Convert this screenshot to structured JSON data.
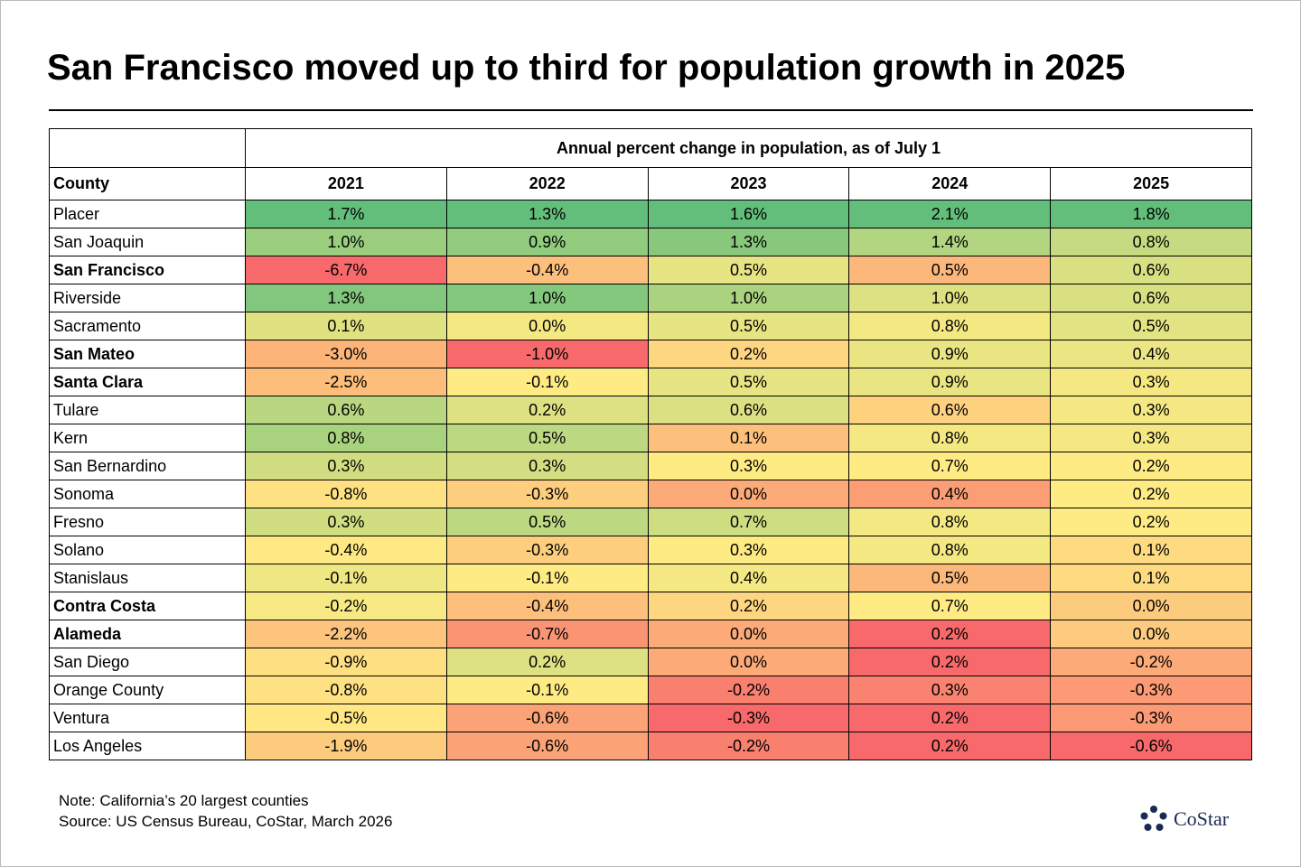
{
  "header": {
    "title": "San Francisco moved up to third for population growth in 2025"
  },
  "table": {
    "span_header": "Annual percent change in population, as of July 1",
    "columns": [
      "County",
      "2021",
      "2022",
      "2023",
      "2024",
      "2025"
    ],
    "rows": [
      {
        "county": "Placer",
        "bold": false,
        "values": [
          "1.7%",
          "1.3%",
          "1.6%",
          "2.1%",
          "1.8%"
        ]
      },
      {
        "county": "San Joaquin",
        "bold": false,
        "values": [
          "1.0%",
          "0.9%",
          "1.3%",
          "1.4%",
          "0.8%"
        ]
      },
      {
        "county": "San Francisco",
        "bold": true,
        "values": [
          "-6.7%",
          "-0.4%",
          "0.5%",
          "0.5%",
          "0.6%"
        ]
      },
      {
        "county": "Riverside",
        "bold": false,
        "values": [
          "1.3%",
          "1.0%",
          "1.0%",
          "1.0%",
          "0.6%"
        ]
      },
      {
        "county": "Sacramento",
        "bold": false,
        "values": [
          "0.1%",
          "0.0%",
          "0.5%",
          "0.8%",
          "0.5%"
        ]
      },
      {
        "county": "San Mateo",
        "bold": true,
        "values": [
          "-3.0%",
          "-1.0%",
          "0.2%",
          "0.9%",
          "0.4%"
        ]
      },
      {
        "county": "Santa Clara",
        "bold": true,
        "values": [
          "-2.5%",
          "-0.1%",
          "0.5%",
          "0.9%",
          "0.3%"
        ]
      },
      {
        "county": "Tulare",
        "bold": false,
        "values": [
          "0.6%",
          "0.2%",
          "0.6%",
          "0.6%",
          "0.3%"
        ]
      },
      {
        "county": "Kern",
        "bold": false,
        "values": [
          "0.8%",
          "0.5%",
          "0.1%",
          "0.8%",
          "0.3%"
        ]
      },
      {
        "county": "San Bernardino",
        "bold": false,
        "values": [
          "0.3%",
          "0.3%",
          "0.3%",
          "0.7%",
          "0.2%"
        ]
      },
      {
        "county": "Sonoma",
        "bold": false,
        "values": [
          "-0.8%",
          "-0.3%",
          "0.0%",
          "0.4%",
          "0.2%"
        ]
      },
      {
        "county": "Fresno",
        "bold": false,
        "values": [
          "0.3%",
          "0.5%",
          "0.7%",
          "0.8%",
          "0.2%"
        ]
      },
      {
        "county": "Solano",
        "bold": false,
        "values": [
          "-0.4%",
          "-0.3%",
          "0.3%",
          "0.8%",
          "0.1%"
        ]
      },
      {
        "county": "Stanislaus",
        "bold": false,
        "values": [
          "-0.1%",
          "-0.1%",
          "0.4%",
          "0.5%",
          "0.1%"
        ]
      },
      {
        "county": "Contra Costa",
        "bold": true,
        "values": [
          "-0.2%",
          "-0.4%",
          "0.2%",
          "0.7%",
          "0.0%"
        ]
      },
      {
        "county": "Alameda",
        "bold": true,
        "values": [
          "-2.2%",
          "-0.7%",
          "0.0%",
          "0.2%",
          "0.0%"
        ]
      },
      {
        "county": "San Diego",
        "bold": false,
        "values": [
          "-0.9%",
          "0.2%",
          "0.0%",
          "0.2%",
          "-0.2%"
        ]
      },
      {
        "county": "Orange County",
        "bold": false,
        "values": [
          "-0.8%",
          "-0.1%",
          "-0.2%",
          "0.3%",
          "-0.3%"
        ]
      },
      {
        "county": "Ventura",
        "bold": false,
        "values": [
          "-0.5%",
          "-0.6%",
          "-0.3%",
          "0.2%",
          "-0.3%"
        ]
      },
      {
        "county": "Los Angeles",
        "bold": false,
        "values": [
          "-1.9%",
          "-0.6%",
          "-0.2%",
          "0.2%",
          "-0.6%"
        ]
      }
    ]
  },
  "footer": {
    "note": "Note: California’s 20 largest counties",
    "source": "Source: US Census Bureau, CoStar, March 2026",
    "logo": "CoStar"
  }
}
